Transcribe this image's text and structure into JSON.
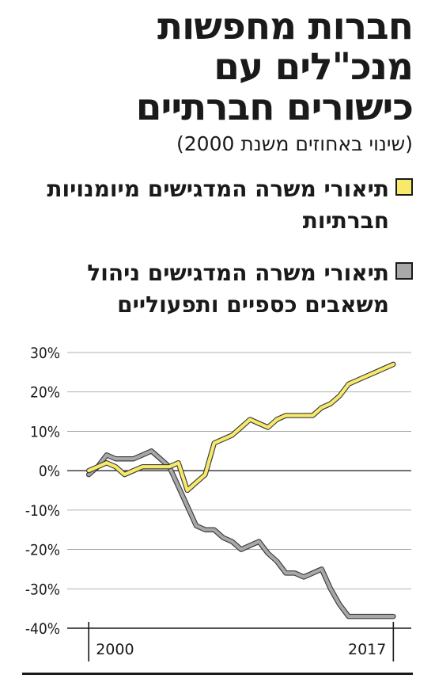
{
  "header": {
    "title_lines": [
      "חברות מחפשות",
      "מנכ\"לים עם",
      "כישורים חברתיים"
    ],
    "subtitle": "(שינוי באחוזים משנת 2000)"
  },
  "legend": [
    {
      "label": "תיאורי משרה המדגישים מיומנויות חברתיות",
      "color": "#f7ea6a"
    },
    {
      "label": "תיאורי משרה המדגישים ניהול משאבים כספיים ותפעוליים",
      "color": "#a8a8a8"
    }
  ],
  "chart_data": {
    "type": "line",
    "title": "",
    "xlabel": "",
    "ylabel": "",
    "ylim": [
      -40,
      30
    ],
    "yticks": [
      30,
      20,
      10,
      0,
      -10,
      -20,
      -30,
      -40
    ],
    "ytick_labels": [
      "30%",
      "20%",
      "10%",
      "0%",
      "-10%",
      "-20%",
      "-30%",
      "-40%"
    ],
    "xlim": [
      1998.8,
      2018.0
    ],
    "xtick_labels": [
      {
        "value": 2000,
        "label": "2000"
      },
      {
        "value": 2017,
        "label": "2017"
      }
    ],
    "grid": true,
    "series": [
      {
        "name": "",
        "color": "#f7ea6a",
        "x": [
          2000,
          2000.5,
          2001,
          2001.5,
          2002,
          2002.5,
          2003,
          2003.5,
          2004,
          2004.5,
          2005,
          2005.5,
          2006,
          2006.5,
          2007,
          2007.5,
          2008,
          2008.5,
          2009,
          2009.5,
          2010,
          2010.5,
          2011,
          2011.5,
          2012,
          2012.5,
          2013,
          2013.5,
          2014,
          2014.5,
          2015,
          2015.5,
          2016,
          2016.5,
          2017
        ],
        "y": [
          0,
          1,
          2,
          1,
          -1,
          0,
          1,
          1,
          1,
          1,
          2,
          -5,
          -3,
          -1,
          7,
          8,
          9,
          11,
          13,
          12,
          11,
          13,
          14,
          14,
          14,
          14,
          16,
          17,
          19,
          22,
          23,
          24,
          25,
          26,
          27
        ]
      },
      {
        "name": "",
        "color": "#a8a8a8",
        "x": [
          2000,
          2000.5,
          2001,
          2001.5,
          2002,
          2002.5,
          2003,
          2003.5,
          2004,
          2004.5,
          2005,
          2005.5,
          2006,
          2006.5,
          2007,
          2007.5,
          2008,
          2008.5,
          2009,
          2009.5,
          2010,
          2010.5,
          2011,
          2011.5,
          2012,
          2012.5,
          2013,
          2013.5,
          2014,
          2014.5,
          2015,
          2015.5,
          2016,
          2016.5,
          2017
        ],
        "y": [
          -1,
          1,
          4,
          3,
          3,
          3,
          4,
          5,
          3,
          1,
          -4,
          -9,
          -14,
          -15,
          -15,
          -17,
          -18,
          -20,
          -19,
          -18,
          -21,
          -23,
          -26,
          -26,
          -27,
          -26,
          -25,
          -30,
          -34,
          -37,
          -37,
          -37,
          -37,
          -37,
          -37
        ]
      }
    ]
  }
}
